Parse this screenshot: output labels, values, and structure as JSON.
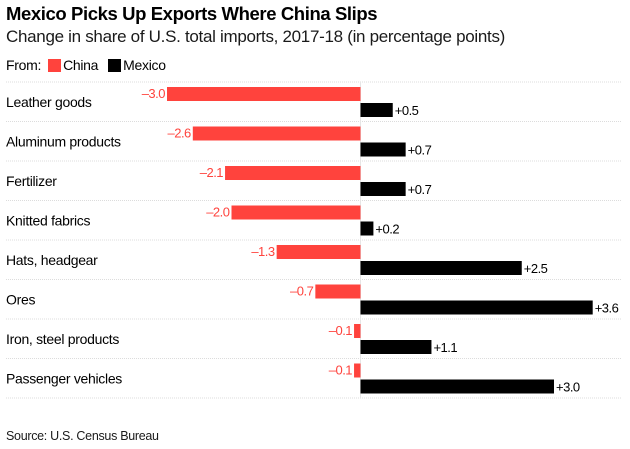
{
  "chart_data": {
    "type": "bar",
    "orientation": "horizontal",
    "title": "Mexico Picks Up Exports Where China Slips",
    "subtitle": "Change in share of U.S. total imports, 2017-18 (in percentage points)",
    "legend_prefix": "From:",
    "legend_position": "top-left",
    "categories": [
      "Leather goods",
      "Aluminum products",
      "Fertilizer",
      "Knitted fabrics",
      "Hats, headgear",
      "Ores",
      "Iron, steel products",
      "Passenger vehicles"
    ],
    "series": [
      {
        "name": "China",
        "color": "#ff433d",
        "values": [
          -3.0,
          -2.6,
          -2.1,
          -2.0,
          -1.3,
          -0.7,
          -0.1,
          -0.1
        ],
        "labels": [
          "–3.0",
          "–2.6",
          "–2.1",
          "–2.0",
          "–1.3",
          "–0.7",
          "–0.1",
          "–0.1"
        ]
      },
      {
        "name": "Mexico",
        "color": "#000000",
        "values": [
          0.5,
          0.7,
          0.7,
          0.2,
          2.5,
          3.6,
          1.1,
          3.0
        ],
        "labels": [
          "+0.5",
          "+0.7",
          "+0.7",
          "+0.2",
          "+2.5",
          "+3.6",
          "+1.1",
          "+3.0"
        ]
      }
    ],
    "xlim": [
      -3.0,
      3.6
    ],
    "xlabel": "",
    "ylabel": "",
    "grid": true,
    "source": "Source: U.S. Census Bureau"
  }
}
